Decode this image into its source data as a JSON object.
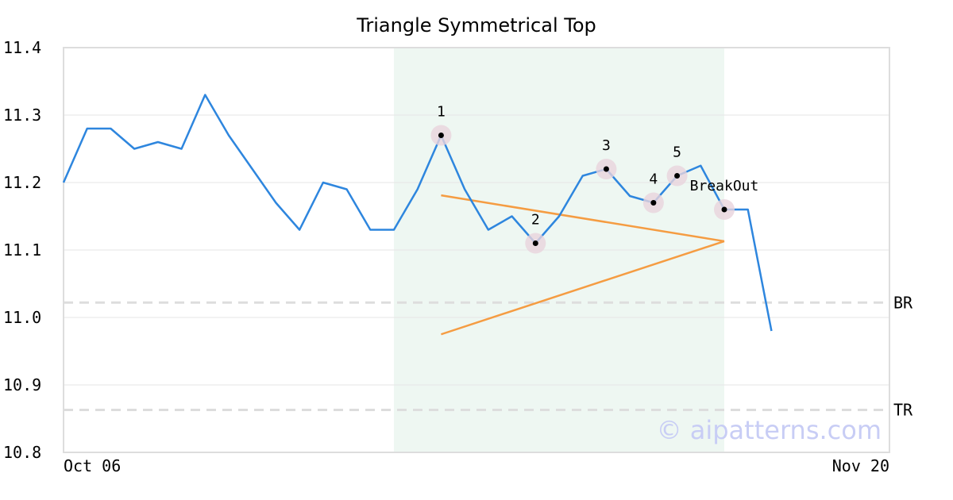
{
  "chart_data": {
    "type": "line",
    "title": "Triangle Symmetrical Top",
    "x": [
      0,
      1,
      2,
      3,
      4,
      5,
      6,
      7,
      8,
      9,
      10,
      11,
      12,
      13,
      14,
      15,
      16,
      17,
      18,
      19,
      20,
      21,
      22,
      23,
      24,
      25,
      26,
      27,
      28,
      29,
      30
    ],
    "values": [
      11.2,
      11.28,
      11.28,
      11.25,
      11.26,
      11.25,
      11.33,
      11.27,
      11.22,
      11.17,
      11.13,
      11.2,
      11.19,
      11.13,
      11.13,
      11.19,
      11.27,
      11.19,
      11.13,
      11.15,
      11.11,
      11.15,
      11.21,
      11.22,
      11.18,
      11.17,
      11.21,
      11.225,
      11.16,
      11.16,
      10.98
    ],
    "color": "#2e86de",
    "xlim": [
      0,
      35
    ],
    "xticks": [
      {
        "value": 0,
        "label": "Oct 06"
      },
      {
        "value": 35,
        "label": "Nov 20"
      }
    ],
    "ylim": [
      10.8,
      11.4
    ],
    "yticks": [
      {
        "value": 10.8,
        "label": "10.8"
      },
      {
        "value": 10.9,
        "label": "10.9"
      },
      {
        "value": 11.0,
        "label": "11.0"
      },
      {
        "value": 11.1,
        "label": "11.1"
      },
      {
        "value": 11.2,
        "label": "11.2"
      },
      {
        "value": 11.3,
        "label": "11.3"
      },
      {
        "value": 11.4,
        "label": "11.4"
      }
    ],
    "grid": true,
    "shaded_x": [
      14,
      28
    ],
    "shade_color": "#eef7f2",
    "trend_color": "#f59c42",
    "trend_lines": [
      {
        "x": [
          16,
          28
        ],
        "values": [
          11.181,
          11.113
        ]
      },
      {
        "x": [
          16,
          28
        ],
        "values": [
          10.975,
          11.113
        ]
      }
    ],
    "points": [
      {
        "label": "1",
        "x": 16,
        "value": 11.27
      },
      {
        "label": "2",
        "x": 20,
        "value": 11.11
      },
      {
        "label": "3",
        "x": 23,
        "value": 11.22
      },
      {
        "label": "4",
        "x": 25,
        "value": 11.17
      },
      {
        "label": "5",
        "x": 26,
        "value": 11.21
      },
      {
        "label": "BreakOut",
        "x": 28,
        "value": 11.16
      }
    ],
    "reference_lines": [
      {
        "label": "BR",
        "value": 11.022
      },
      {
        "label": "TR",
        "value": 10.863
      }
    ],
    "watermark": "© aipatterns.com"
  }
}
